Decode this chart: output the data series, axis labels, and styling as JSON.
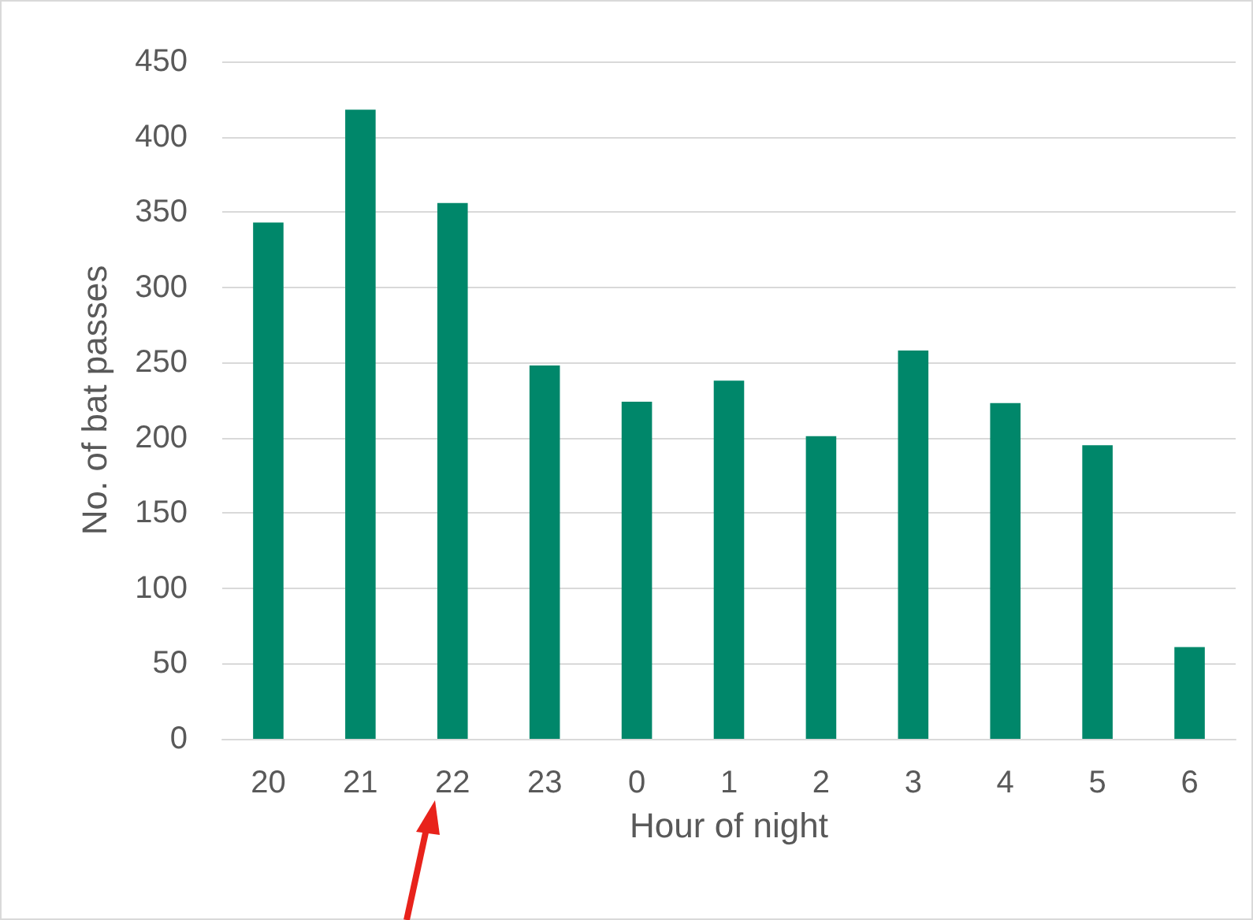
{
  "chart_data": {
    "type": "bar",
    "xlabel": "Hour of night",
    "ylabel": "No. of bat passes",
    "categories": [
      "20",
      "21",
      "22",
      "23",
      "0",
      "1",
      "2",
      "3",
      "4",
      "5",
      "6"
    ],
    "values": [
      343,
      418,
      356,
      248,
      224,
      238,
      201,
      258,
      223,
      195,
      61
    ],
    "color": "#00876a",
    "ylim": [
      0,
      450
    ],
    "yticks": [
      0,
      50,
      100,
      150,
      200,
      250,
      300,
      350,
      400,
      450
    ],
    "grid": "y"
  }
}
